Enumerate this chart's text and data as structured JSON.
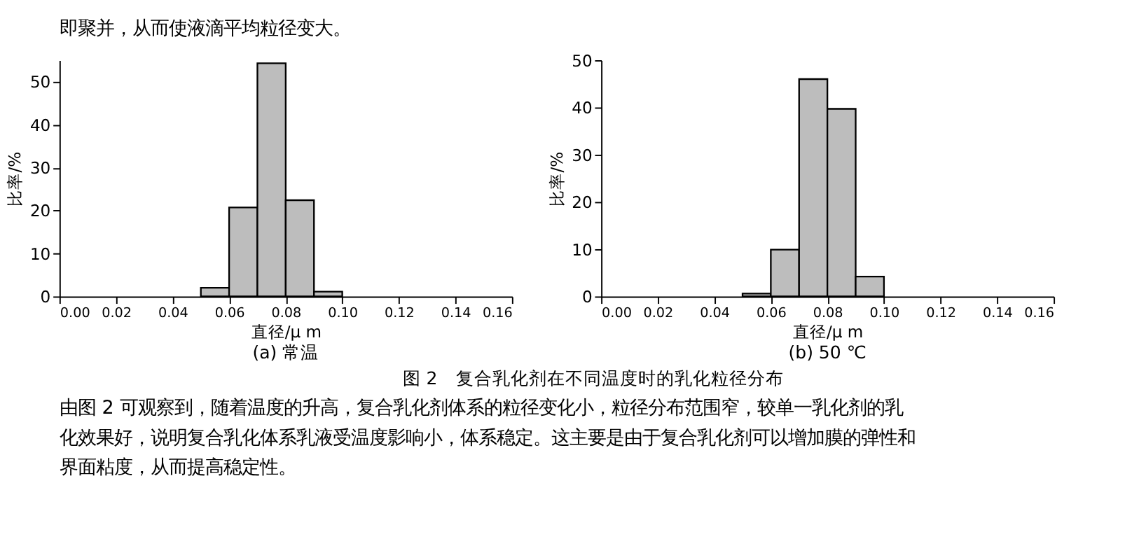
{
  "chart_data": [
    {
      "type": "other",
      "annotations": [
        "即聚并，从而使液滴平均粒径变大。"
      ]
    },
    {
      "type": "histogram",
      "title": "(a) 常温",
      "xlabel": "直径/μ m",
      "ylabel": "比率/%",
      "color": "#bdbdbd",
      "bins": [
        0.05,
        0.06,
        0.07,
        0.08,
        0.09,
        0.1
      ],
      "values": [
        2.0,
        20.7,
        54.3,
        22.4,
        1.1
      ],
      "xlim": [
        0,
        0.16
      ],
      "xticks": [
        {
          "value": 0,
          "label": "0.00"
        },
        {
          "value": 0.02,
          "label": "0.02"
        },
        {
          "value": 0.04,
          "label": "0.04"
        },
        {
          "value": 0.06,
          "label": "0.06"
        },
        {
          "value": 0.08,
          "label": "0.08"
        },
        {
          "value": 0.1,
          "label": "0.10"
        },
        {
          "value": 0.12,
          "label": "0.12"
        },
        {
          "value": 0.14,
          "label": "0.14"
        },
        {
          "value": 0.16,
          "label": "0.16"
        }
      ],
      "ylim": [
        0,
        55
      ],
      "yticks": [
        0,
        10,
        20,
        30,
        40,
        50
      ],
      "grid": false
    },
    {
      "type": "histogram",
      "title": "(b) 50 ℃",
      "xlabel": "直径/μ m",
      "ylabel": "比率/%",
      "color": "#bdbdbd",
      "bins": [
        0.05,
        0.06,
        0.07,
        0.08,
        0.09,
        0.1
      ],
      "values": [
        0.6,
        9.9,
        46.0,
        39.7,
        4.2
      ],
      "xlim": [
        0,
        0.16
      ],
      "xticks": [
        {
          "value": 0,
          "label": "0.00"
        },
        {
          "value": 0.02,
          "label": "0.02"
        },
        {
          "value": 0.04,
          "label": "0.04"
        },
        {
          "value": 0.06,
          "label": "0.06"
        },
        {
          "value": 0.08,
          "label": "0.08"
        },
        {
          "value": 0.1,
          "label": "0.10"
        },
        {
          "value": 0.12,
          "label": "0.12"
        },
        {
          "value": 0.14,
          "label": "0.14"
        },
        {
          "value": 0.16,
          "label": "0.16"
        }
      ],
      "ylim": [
        0,
        50
      ],
      "yticks": [
        0,
        10,
        20,
        30,
        40,
        50
      ],
      "grid": false
    },
    {
      "type": "other",
      "title": "图 2　复合乳化剂在不同温度时的乳化粒径分布",
      "annotations": [
        "　　由图 2 可观察到，随着温度的升高，复合乳化剂体系的粒径变化小，粒径分布范围窄，较单一乳化剂的乳",
        "化效果好，说明复合乳化体系乳液受温度影响小，体系稳定。这主要是由于复合乳化剂可以增加膜的弹性和",
        "界面粘度，从而提高稳定性。"
      ]
    }
  ]
}
